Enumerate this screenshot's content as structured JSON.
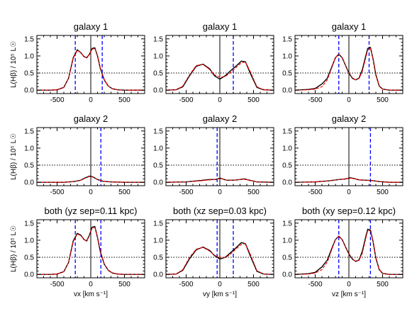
{
  "chart_data": [
    {
      "type": "line",
      "title": "galaxy 1",
      "xlabel": "",
      "ylabel": "L(Hβ) / 10⁵ L☉",
      "xlim": [
        -800,
        800
      ],
      "ylim": [
        -0.1,
        1.6
      ],
      "x_ticks": [
        -500,
        0,
        500
      ],
      "y_ticks": [
        0.0,
        0.5,
        1.0,
        1.5
      ],
      "hline": 0.5,
      "vlines_solid": [
        0
      ],
      "vlines_dashed": [
        -230,
        170
      ],
      "series": [
        {
          "color": "#000000",
          "x": [
            -800,
            -600,
            -500,
            -400,
            -330,
            -260,
            -200,
            -150,
            -100,
            -60,
            -20,
            20,
            60,
            100,
            140,
            200,
            260,
            320,
            400,
            500,
            600,
            800
          ],
          "y": [
            0,
            0,
            0.01,
            0.08,
            0.35,
            0.95,
            1.18,
            1.1,
            0.98,
            0.95,
            1.05,
            1.22,
            1.24,
            1.0,
            0.65,
            0.3,
            0.12,
            0.04,
            0.01,
            0,
            0,
            0
          ]
        },
        {
          "color": "#ff0000",
          "x": [
            -800,
            -600,
            -500,
            -400,
            -330,
            -260,
            -200,
            -150,
            -100,
            -60,
            -20,
            20,
            60,
            100,
            140,
            200,
            260,
            320,
            400,
            500,
            600,
            800
          ],
          "y": [
            0,
            0,
            0.01,
            0.08,
            0.35,
            0.93,
            1.16,
            1.1,
            0.98,
            0.94,
            1.04,
            1.2,
            1.22,
            1.02,
            0.66,
            0.31,
            0.12,
            0.04,
            0.01,
            0,
            0,
            0
          ]
        }
      ]
    },
    {
      "type": "line",
      "title": "galaxy 1",
      "xlabel": "",
      "ylabel": "",
      "xlim": [
        -800,
        800
      ],
      "ylim": [
        -0.1,
        1.6
      ],
      "x_ticks": [
        -500,
        0,
        500
      ],
      "y_ticks": [
        0.0,
        0.5,
        1.0,
        1.5
      ],
      "hline": 0.5,
      "vlines_solid": [
        0
      ],
      "vlines_dashed": [
        200
      ],
      "series": [
        {
          "color": "#000000",
          "x": [
            -800,
            -650,
            -550,
            -450,
            -350,
            -250,
            -150,
            -80,
            0,
            80,
            150,
            250,
            320,
            380,
            450,
            550,
            650,
            800
          ],
          "y": [
            0,
            0.01,
            0.1,
            0.42,
            0.7,
            0.76,
            0.62,
            0.42,
            0.32,
            0.42,
            0.55,
            0.72,
            0.85,
            0.83,
            0.5,
            0.08,
            0.01,
            0
          ]
        },
        {
          "color": "#ff0000",
          "x": [
            -800,
            -650,
            -550,
            -450,
            -350,
            -250,
            -150,
            -80,
            0,
            80,
            150,
            250,
            320,
            380,
            450,
            550,
            650,
            800
          ],
          "y": [
            0,
            0.01,
            0.12,
            0.45,
            0.72,
            0.75,
            0.6,
            0.45,
            0.38,
            0.4,
            0.5,
            0.68,
            0.8,
            0.82,
            0.55,
            0.1,
            0.01,
            0
          ]
        }
      ]
    },
    {
      "type": "line",
      "title": "galaxy 1",
      "xlabel": "",
      "ylabel": "",
      "xlim": [
        -800,
        800
      ],
      "ylim": [
        -0.1,
        1.6
      ],
      "x_ticks": [
        -500,
        0,
        500
      ],
      "y_ticks": [
        0.0,
        0.5,
        1.0,
        1.5
      ],
      "hline": 0.5,
      "vlines_solid": [
        0
      ],
      "vlines_dashed": [
        -150,
        300
      ],
      "series": [
        {
          "color": "#000000",
          "x": [
            -800,
            -600,
            -500,
            -400,
            -320,
            -250,
            -200,
            -150,
            -100,
            -50,
            0,
            50,
            100,
            150,
            200,
            250,
            280,
            320,
            360,
            400,
            450,
            500,
            600,
            800
          ],
          "y": [
            0,
            0.02,
            0.05,
            0.18,
            0.35,
            0.7,
            0.95,
            1.05,
            0.95,
            0.72,
            0.5,
            0.35,
            0.3,
            0.35,
            0.6,
            1.0,
            1.22,
            1.25,
            0.9,
            0.45,
            0.12,
            0.03,
            0,
            0
          ]
        },
        {
          "color": "#ff0000",
          "x": [
            -800,
            -600,
            -500,
            -400,
            -320,
            -250,
            -200,
            -150,
            -100,
            -50,
            0,
            50,
            100,
            150,
            200,
            250,
            280,
            320,
            360,
            400,
            450,
            500,
            600,
            800
          ],
          "y": [
            0,
            0.01,
            0.03,
            0.1,
            0.3,
            0.68,
            0.95,
            1.05,
            0.95,
            0.72,
            0.52,
            0.36,
            0.3,
            0.34,
            0.55,
            0.95,
            1.18,
            1.22,
            0.92,
            0.47,
            0.13,
            0.03,
            0,
            0
          ]
        }
      ]
    },
    {
      "type": "line",
      "title": "galaxy 2",
      "xlabel": "",
      "ylabel": "L(Hβ) / 10⁵ L☉",
      "xlim": [
        -800,
        800
      ],
      "ylim": [
        -0.1,
        1.6
      ],
      "x_ticks": [
        -500,
        0,
        500
      ],
      "y_ticks": [
        0.0,
        0.5,
        1.0,
        1.5
      ],
      "hline": 0.5,
      "vlines_solid": [
        0
      ],
      "vlines_dashed": [
        150
      ],
      "series": [
        {
          "color": "#000000",
          "x": [
            -800,
            -400,
            -250,
            -150,
            -80,
            -20,
            30,
            100,
            180,
            300,
            500,
            800
          ],
          "y": [
            0,
            0,
            0.02,
            0.06,
            0.13,
            0.18,
            0.16,
            0.08,
            0.03,
            0.01,
            0,
            0
          ]
        },
        {
          "color": "#ff0000",
          "x": [
            -800,
            -400,
            -250,
            -150,
            -80,
            -20,
            30,
            100,
            180,
            300,
            500,
            800
          ],
          "y": [
            0,
            0,
            0.02,
            0.06,
            0.12,
            0.17,
            0.15,
            0.08,
            0.03,
            0.01,
            0,
            0
          ]
        }
      ]
    },
    {
      "type": "line",
      "title": "galaxy 2",
      "xlabel": "",
      "ylabel": "",
      "xlim": [
        -800,
        800
      ],
      "ylim": [
        -0.1,
        1.6
      ],
      "x_ticks": [
        -500,
        0,
        500
      ],
      "y_ticks": [
        0.0,
        0.5,
        1.0,
        1.5
      ],
      "hline": 0.5,
      "vlines_solid": [
        0
      ],
      "vlines_dashed": [
        -40
      ],
      "series": [
        {
          "color": "#000000",
          "x": [
            -800,
            -500,
            -300,
            -150,
            -60,
            0,
            40,
            100,
            200,
            300,
            360,
            420,
            550,
            800
          ],
          "y": [
            0,
            0.01,
            0.05,
            0.08,
            0.08,
            0.12,
            0.1,
            0.06,
            0.06,
            0.08,
            0.1,
            0.07,
            0.01,
            0
          ]
        },
        {
          "color": "#ff0000",
          "x": [
            -800,
            -500,
            -300,
            -150,
            -60,
            0,
            40,
            100,
            200,
            300,
            360,
            420,
            550,
            800
          ],
          "y": [
            0,
            0.01,
            0.04,
            0.07,
            0.08,
            0.11,
            0.1,
            0.06,
            0.06,
            0.08,
            0.09,
            0.07,
            0.01,
            0
          ]
        }
      ]
    },
    {
      "type": "line",
      "title": "galaxy 2",
      "xlabel": "",
      "ylabel": "",
      "xlim": [
        -800,
        800
      ],
      "ylim": [
        -0.1,
        1.6
      ],
      "x_ticks": [
        -500,
        0,
        500
      ],
      "y_ticks": [
        0.0,
        0.5,
        1.0,
        1.5
      ],
      "hline": 0.5,
      "vlines_solid": [
        0
      ],
      "vlines_dashed": [
        320
      ],
      "series": [
        {
          "color": "#000000",
          "x": [
            -800,
            -500,
            -300,
            -150,
            -50,
            20,
            80,
            150,
            250,
            350,
            450,
            600,
            800
          ],
          "y": [
            0,
            0.01,
            0.04,
            0.08,
            0.1,
            0.13,
            0.11,
            0.07,
            0.06,
            0.05,
            0.02,
            0,
            0
          ]
        },
        {
          "color": "#ff0000",
          "x": [
            -800,
            -500,
            -300,
            -150,
            -50,
            20,
            80,
            150,
            250,
            350,
            450,
            600,
            800
          ],
          "y": [
            0,
            0.01,
            0.04,
            0.08,
            0.1,
            0.12,
            0.11,
            0.07,
            0.06,
            0.05,
            0.02,
            0,
            0
          ]
        }
      ]
    },
    {
      "type": "line",
      "title": "both (yz sep=0.11 kpc)",
      "xlabel": "vx [km s⁻¹]",
      "ylabel": "L(Hβ) / 10⁵ L☉",
      "xlim": [
        -800,
        800
      ],
      "ylim": [
        -0.1,
        1.6
      ],
      "x_ticks": [
        -500,
        0,
        500
      ],
      "y_ticks": [
        0.0,
        0.5,
        1.0,
        1.5
      ],
      "hline": 0.5,
      "vlines_solid": [
        0
      ],
      "vlines_dashed": [
        -230,
        150
      ],
      "series": [
        {
          "color": "#000000",
          "x": [
            -800,
            -600,
            -500,
            -400,
            -330,
            -260,
            -200,
            -150,
            -100,
            -60,
            -20,
            20,
            60,
            100,
            140,
            200,
            260,
            320,
            400,
            500,
            600,
            800
          ],
          "y": [
            0,
            0,
            0.01,
            0.08,
            0.35,
            0.98,
            1.2,
            1.15,
            1.02,
            0.98,
            1.15,
            1.38,
            1.4,
            1.08,
            0.68,
            0.3,
            0.12,
            0.04,
            0.01,
            0,
            0,
            0
          ]
        },
        {
          "color": "#ff0000",
          "x": [
            -800,
            -600,
            -500,
            -400,
            -330,
            -260,
            -200,
            -150,
            -100,
            -60,
            -20,
            20,
            60,
            100,
            140,
            200,
            260,
            320,
            400,
            500,
            600,
            800
          ],
          "y": [
            0,
            0,
            0.01,
            0.08,
            0.35,
            0.96,
            1.18,
            1.14,
            1.02,
            0.97,
            1.14,
            1.36,
            1.38,
            1.1,
            0.7,
            0.31,
            0.12,
            0.04,
            0.01,
            0,
            0,
            0
          ]
        }
      ]
    },
    {
      "type": "line",
      "title": "both (xz sep=0.03 kpc)",
      "xlabel": "vy [km s⁻¹]",
      "ylabel": "",
      "xlim": [
        -800,
        800
      ],
      "ylim": [
        -0.1,
        1.6
      ],
      "x_ticks": [
        -500,
        0,
        500
      ],
      "y_ticks": [
        0.0,
        0.5,
        1.0,
        1.5
      ],
      "hline": 0.5,
      "vlines_solid": [
        0
      ],
      "vlines_dashed": [
        -40,
        200
      ],
      "series": [
        {
          "color": "#000000",
          "x": [
            -800,
            -650,
            -550,
            -450,
            -350,
            -250,
            -150,
            -80,
            0,
            80,
            150,
            250,
            320,
            380,
            450,
            550,
            650,
            800
          ],
          "y": [
            0,
            0.01,
            0.12,
            0.46,
            0.72,
            0.8,
            0.7,
            0.55,
            0.45,
            0.5,
            0.62,
            0.8,
            0.93,
            0.9,
            0.55,
            0.09,
            0.01,
            0
          ]
        },
        {
          "color": "#ff0000",
          "x": [
            -800,
            -650,
            -550,
            -450,
            -350,
            -250,
            -150,
            -80,
            0,
            80,
            150,
            250,
            320,
            380,
            450,
            550,
            650,
            800
          ],
          "y": [
            0,
            0.01,
            0.14,
            0.5,
            0.74,
            0.79,
            0.68,
            0.56,
            0.5,
            0.49,
            0.58,
            0.76,
            0.88,
            0.9,
            0.6,
            0.11,
            0.01,
            0
          ]
        }
      ]
    },
    {
      "type": "line",
      "title": "both (xy sep=0.12 kpc)",
      "xlabel": "vz [km s⁻¹]",
      "ylabel": "",
      "xlim": [
        -800,
        800
      ],
      "ylim": [
        -0.1,
        1.6
      ],
      "x_ticks": [
        -500,
        0,
        500
      ],
      "y_ticks": [
        0.0,
        0.5,
        1.0,
        1.5
      ],
      "hline": 0.5,
      "vlines_solid": [
        0
      ],
      "vlines_dashed": [
        -150,
        320
      ],
      "series": [
        {
          "color": "#000000",
          "x": [
            -800,
            -600,
            -500,
            -400,
            -320,
            -250,
            -200,
            -150,
            -100,
            -50,
            0,
            50,
            100,
            150,
            200,
            250,
            280,
            320,
            360,
            400,
            450,
            500,
            600,
            800
          ],
          "y": [
            0,
            0.02,
            0.06,
            0.22,
            0.42,
            0.78,
            1.02,
            1.12,
            1.02,
            0.8,
            0.6,
            0.45,
            0.38,
            0.42,
            0.68,
            1.1,
            1.32,
            1.3,
            0.95,
            0.48,
            0.14,
            0.03,
            0,
            0
          ]
        },
        {
          "color": "#ff0000",
          "x": [
            -800,
            -600,
            -500,
            -400,
            -320,
            -250,
            -200,
            -150,
            -100,
            -50,
            0,
            50,
            100,
            150,
            200,
            250,
            280,
            320,
            360,
            400,
            450,
            500,
            600,
            800
          ],
          "y": [
            0,
            0.01,
            0.04,
            0.14,
            0.36,
            0.75,
            1.02,
            1.12,
            1.02,
            0.8,
            0.62,
            0.46,
            0.38,
            0.41,
            0.62,
            1.05,
            1.28,
            1.28,
            0.97,
            0.5,
            0.15,
            0.03,
            0,
            0
          ]
        }
      ]
    }
  ]
}
